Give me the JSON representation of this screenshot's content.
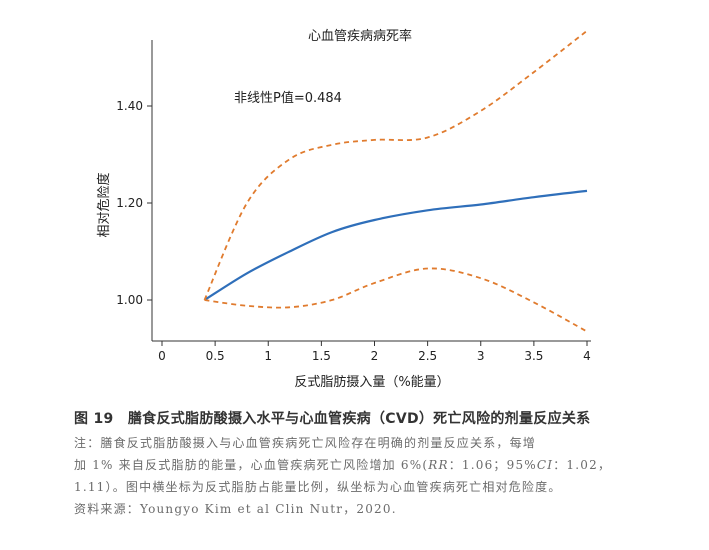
{
  "chart_data": {
    "type": "line",
    "title": "心血管疾病病死率",
    "annotation": "非线性P值=0.484",
    "xlabel": "反式脂肪摄入量（%能量）",
    "ylabel": "相对危险度",
    "xlim": [
      0,
      4
    ],
    "ylim": [
      0.93,
      1.56
    ],
    "xticks": [
      0,
      0.5,
      1,
      1.5,
      2,
      2.5,
      3,
      3.5,
      4
    ],
    "xtick_labels": [
      "0",
      "0.5",
      "1",
      "1.5",
      "2",
      "2.5",
      "3",
      "3.5",
      "4"
    ],
    "yticks": [
      1.0,
      1.2,
      1.4
    ],
    "ytick_labels": [
      "1.00",
      "1.20",
      "1.40"
    ],
    "grid": false,
    "series": [
      {
        "role": "estimate",
        "color": "#2f6fba",
        "style": "solid",
        "points": [
          [
            0.4,
            1.0
          ],
          [
            0.8,
            1.055
          ],
          [
            1.2,
            1.1
          ],
          [
            1.6,
            1.14
          ],
          [
            2.0,
            1.165
          ],
          [
            2.5,
            1.185
          ],
          [
            3.0,
            1.197
          ],
          [
            3.5,
            1.212
          ],
          [
            4.0,
            1.225
          ]
        ]
      },
      {
        "role": "upper_ci",
        "color": "#e07b2e",
        "style": "dashed",
        "points": [
          [
            0.4,
            1.0
          ],
          [
            0.8,
            1.2
          ],
          [
            1.2,
            1.29
          ],
          [
            1.6,
            1.32
          ],
          [
            2.0,
            1.33
          ],
          [
            2.5,
            1.335
          ],
          [
            3.0,
            1.39
          ],
          [
            3.5,
            1.47
          ],
          [
            4.0,
            1.555
          ]
        ]
      },
      {
        "role": "lower_ci",
        "color": "#e07b2e",
        "style": "dashed",
        "points": [
          [
            0.4,
            1.0
          ],
          [
            0.8,
            0.988
          ],
          [
            1.2,
            0.985
          ],
          [
            1.6,
            1.0
          ],
          [
            2.0,
            1.035
          ],
          [
            2.5,
            1.065
          ],
          [
            3.0,
            1.045
          ],
          [
            3.5,
            0.995
          ],
          [
            4.0,
            0.935
          ]
        ]
      }
    ]
  },
  "caption": {
    "title": "图 19　膳食反式脂肪酸摄入水平与心血管疾病（CVD）死亡风险的剂量反应关系",
    "note_line1": "注：膳食反式脂肪酸摄入与心血管疾病死亡风险存在明确的剂量反应关系，每增",
    "note_line2_pre": "加 1% 来自反式脂肪的能量，心血管疾病死亡风险增加 6%(",
    "note_rr": "RR",
    "note_line2_mid": "：1.06；95%",
    "note_ci": "CI",
    "note_line2_post": "：1.02，",
    "note_line3": "1.11）。图中横坐标为反式脂肪占能量比例，纵坐标为心血管疾病死亡相对危险度。",
    "note_line4": "资料来源：Youngyo Kim et al Clin Nutr，2020."
  }
}
